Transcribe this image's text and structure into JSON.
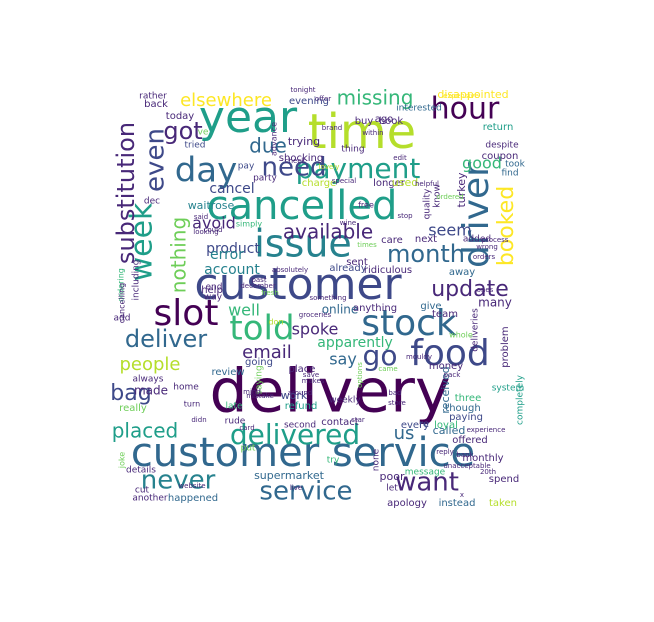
{
  "colors": {
    "c1": "#440154",
    "c2": "#482878",
    "c3": "#3e4989",
    "c4": "#31688e",
    "c5": "#26828e",
    "c6": "#1f9e89",
    "c7": "#35b779",
    "c8": "#6ece58",
    "c9": "#b5de2b",
    "c10": "#fde725"
  },
  "words": [
    {
      "text": "delivery",
      "color": "c1"
    },
    {
      "text": "customer service",
      "color": "c4"
    },
    {
      "text": "customer",
      "color": "c3"
    },
    {
      "text": "time",
      "color": "c9"
    },
    {
      "text": "year",
      "color": "c6"
    },
    {
      "text": "cancelled",
      "color": "c6"
    },
    {
      "text": "issue",
      "color": "c5"
    },
    {
      "text": "stock",
      "color": "c4"
    },
    {
      "text": "food",
      "color": "c3"
    },
    {
      "text": "slot",
      "color": "c1"
    },
    {
      "text": "told",
      "color": "c7"
    },
    {
      "text": "payment",
      "color": "c6"
    },
    {
      "text": "day",
      "color": "c4"
    },
    {
      "text": "driver",
      "color": "c4"
    },
    {
      "text": "delivered",
      "color": "c6"
    },
    {
      "text": "hour",
      "color": "c1"
    },
    {
      "text": "service",
      "color": "c4"
    },
    {
      "text": "want",
      "color": "c2"
    },
    {
      "text": "never",
      "color": "c5"
    },
    {
      "text": "week",
      "color": "c6"
    },
    {
      "text": "substitution",
      "color": "c2"
    },
    {
      "text": "even",
      "color": "c3"
    },
    {
      "text": "need",
      "color": "c3"
    },
    {
      "text": "booked",
      "color": "c10"
    },
    {
      "text": "got",
      "color": "c2"
    },
    {
      "text": "month",
      "color": "c4"
    },
    {
      "text": "go",
      "color": "c3"
    },
    {
      "text": "deliver",
      "color": "c4"
    },
    {
      "text": "missing",
      "color": "c7"
    },
    {
      "text": "nothing",
      "color": "c8"
    },
    {
      "text": "elsewhere",
      "color": "c10"
    },
    {
      "text": "update",
      "color": "c2"
    },
    {
      "text": "available",
      "color": "c2"
    },
    {
      "text": "bag",
      "color": "c3"
    },
    {
      "text": "placed",
      "color": "c6"
    },
    {
      "text": "people",
      "color": "c9"
    },
    {
      "text": "email",
      "color": "c2"
    },
    {
      "text": "due",
      "color": "c4"
    },
    {
      "text": "seem",
      "color": "c3"
    },
    {
      "text": "good",
      "color": "c7"
    },
    {
      "text": "say",
      "color": "c4"
    },
    {
      "text": "spoke",
      "color": "c2"
    },
    {
      "text": "avoid",
      "color": "c2"
    },
    {
      "text": "well",
      "color": "c7"
    },
    {
      "text": "us",
      "color": "c4"
    },
    {
      "text": "account",
      "color": "c5"
    },
    {
      "text": "cancel",
      "color": "c3"
    },
    {
      "text": "online",
      "color": "c4"
    },
    {
      "text": "product",
      "color": "c3"
    },
    {
      "text": "apparently",
      "color": "c7"
    },
    {
      "text": "made",
      "color": "c2"
    },
    {
      "text": "error",
      "color": "c5"
    },
    {
      "text": "disappointed",
      "color": "c10"
    },
    {
      "text": "many",
      "color": "c2"
    },
    {
      "text": "evening",
      "color": "c3"
    },
    {
      "text": "trying",
      "color": "c2"
    },
    {
      "text": "today",
      "color": "c2"
    },
    {
      "text": "waitrose",
      "color": "c5"
    },
    {
      "text": "next",
      "color": "c2"
    },
    {
      "text": "already",
      "color": "c3"
    },
    {
      "text": "supermarket",
      "color": "c4"
    },
    {
      "text": "happened",
      "color": "c4"
    },
    {
      "text": "poor",
      "color": "c2"
    },
    {
      "text": "apology",
      "color": "c2"
    },
    {
      "text": "instead",
      "color": "c4"
    },
    {
      "text": "taken",
      "color": "c9"
    },
    {
      "text": "spend",
      "color": "c2"
    },
    {
      "text": "offered",
      "color": "c2"
    },
    {
      "text": "monthly",
      "color": "c2"
    },
    {
      "text": "called",
      "color": "c4"
    },
    {
      "text": "loyal",
      "color": "c7"
    },
    {
      "text": "work",
      "color": "c3"
    },
    {
      "text": "refund",
      "color": "c6"
    },
    {
      "text": "place",
      "color": "c2"
    },
    {
      "text": "going",
      "color": "c3"
    },
    {
      "text": "contact",
      "color": "c2"
    },
    {
      "text": "every",
      "color": "c3"
    },
    {
      "text": "re",
      "color": "c3"
    },
    {
      "text": "received",
      "color": "c4"
    },
    {
      "text": "three",
      "color": "c7"
    },
    {
      "text": "though",
      "color": "c4"
    },
    {
      "text": "paying",
      "color": "c3"
    },
    {
      "text": "money",
      "color": "c2"
    },
    {
      "text": "problem",
      "color": "c2"
    },
    {
      "text": "team",
      "color": "c2"
    },
    {
      "text": "give",
      "color": "c4"
    },
    {
      "text": "anything",
      "color": "c2"
    },
    {
      "text": "ridiculous",
      "color": "c2"
    },
    {
      "text": "care",
      "color": "c2"
    },
    {
      "text": "sent",
      "color": "c2"
    },
    {
      "text": "away",
      "color": "c4"
    },
    {
      "text": "coupon",
      "color": "c2"
    },
    {
      "text": "return",
      "color": "c6"
    },
    {
      "text": "find",
      "color": "c4"
    },
    {
      "text": "took",
      "color": "c4"
    },
    {
      "text": "despite",
      "color": "c2"
    },
    {
      "text": "ago",
      "color": "c2"
    },
    {
      "text": "buy",
      "color": "c2"
    },
    {
      "text": "book",
      "color": "c2"
    },
    {
      "text": "interested",
      "color": "c4"
    },
    {
      "text": "thing",
      "color": "c2"
    },
    {
      "text": "rather",
      "color": "c2"
    },
    {
      "text": "back",
      "color": "c2"
    },
    {
      "text": "tried",
      "color": "c3"
    },
    {
      "text": "ve",
      "color": "c8"
    },
    {
      "text": "pay",
      "color": "c3"
    },
    {
      "text": "party",
      "color": "c2"
    },
    {
      "text": "dec",
      "color": "c2"
    },
    {
      "text": "including",
      "color": "c2"
    },
    {
      "text": "shocking",
      "color": "c2"
    },
    {
      "text": "charge",
      "color": "c9"
    },
    {
      "text": "longer",
      "color": "c2"
    },
    {
      "text": "used",
      "color": "c9"
    },
    {
      "text": "turkey",
      "color": "c2"
    },
    {
      "text": "quality",
      "color": "c2"
    },
    {
      "text": "know",
      "color": "c2"
    },
    {
      "text": "added",
      "color": "c2"
    },
    {
      "text": "help",
      "color": "c2"
    },
    {
      "text": "way",
      "color": "c2"
    },
    {
      "text": "end",
      "color": "c2"
    },
    {
      "text": "home",
      "color": "c2"
    },
    {
      "text": "review",
      "color": "c4"
    },
    {
      "text": "always",
      "color": "c2"
    },
    {
      "text": "really",
      "color": "c8"
    },
    {
      "text": "late",
      "color": "c7"
    },
    {
      "text": "rude",
      "color": "c2"
    },
    {
      "text": "second",
      "color": "c2"
    },
    {
      "text": "details",
      "color": "c2"
    },
    {
      "text": "put",
      "color": "c8"
    },
    {
      "text": "try",
      "color": "c7"
    },
    {
      "text": "none",
      "color": "c2"
    },
    {
      "text": "let",
      "color": "c2"
    },
    {
      "text": "message",
      "color": "c7"
    },
    {
      "text": "cut",
      "color": "c2"
    },
    {
      "text": "another",
      "color": "c2"
    },
    {
      "text": "saying",
      "color": "c8"
    },
    {
      "text": "weekly",
      "color": "c2"
    },
    {
      "text": "completely",
      "color": "c6"
    },
    {
      "text": "system",
      "color": "c6"
    },
    {
      "text": "deliveries",
      "color": "c2"
    },
    {
      "text": "whole",
      "color": "c8"
    },
    {
      "text": "don",
      "color": "c9"
    },
    {
      "text": "add",
      "color": "c2"
    },
    {
      "text": "tonight",
      "color": "c2"
    },
    {
      "text": "offer",
      "color": "c2"
    },
    {
      "text": "helpful",
      "color": "c2"
    },
    {
      "text": "orders",
      "color": "c2"
    },
    {
      "text": "expensive",
      "color": "c10"
    },
    {
      "text": "ordering",
      "color": "c7"
    },
    {
      "text": "cancelling",
      "color": "c2"
    },
    {
      "text": "joke",
      "color": "c8"
    },
    {
      "text": "experience",
      "color": "c2"
    },
    {
      "text": "unacceptable",
      "color": "c2"
    },
    {
      "text": "simply",
      "color": "c7"
    },
    {
      "text": "fresh",
      "color": "c8"
    },
    {
      "text": "december",
      "color": "c2"
    },
    {
      "text": "wrong",
      "color": "c2"
    },
    {
      "text": "looking",
      "color": "c2"
    },
    {
      "text": "absolutely",
      "color": "c2"
    },
    {
      "text": "bank",
      "color": "c2"
    },
    {
      "text": "reply",
      "color": "c2"
    },
    {
      "text": "star",
      "color": "c2"
    },
    {
      "text": "live",
      "color": "c2"
    },
    {
      "text": "around",
      "color": "c2"
    },
    {
      "text": "makes",
      "color": "c2"
    },
    {
      "text": "save",
      "color": "c2"
    },
    {
      "text": "wine",
      "color": "c2"
    },
    {
      "text": "free",
      "color": "c2"
    },
    {
      "text": "edit",
      "color": "c2"
    },
    {
      "text": "within",
      "color": "c2"
    },
    {
      "text": "brand",
      "color": "c2"
    },
    {
      "text": "advance",
      "color": "c2"
    },
    {
      "text": "options",
      "color": "c8"
    },
    {
      "text": "website",
      "color": "c2"
    },
    {
      "text": "process",
      "color": "c2"
    },
    {
      "text": "lovely",
      "color": "c9"
    },
    {
      "text": "check",
      "color": "c2"
    },
    {
      "text": "groceries",
      "color": "c2"
    },
    {
      "text": "something",
      "color": "c2"
    },
    {
      "text": "said",
      "color": "c2"
    },
    {
      "text": "could",
      "color": "c2"
    },
    {
      "text": "didn",
      "color": "c2"
    },
    {
      "text": "turn",
      "color": "c2"
    },
    {
      "text": "20th",
      "color": "c2"
    },
    {
      "text": "x",
      "color": "c2"
    },
    {
      "text": "ones",
      "color": "c2"
    },
    {
      "text": "store",
      "color": "c2"
    },
    {
      "text": "bad",
      "color": "c2"
    },
    {
      "text": "mouldy",
      "color": "c2"
    },
    {
      "text": "pack",
      "color": "c2"
    },
    {
      "text": "came",
      "color": "c8"
    },
    {
      "text": "stop",
      "color": "c2"
    },
    {
      "text": "ordered",
      "color": "c8"
    },
    {
      "text": "special",
      "color": "c2"
    },
    {
      "text": "times",
      "color": "c8"
    },
    {
      "text": "past",
      "color": "c2"
    },
    {
      "text": "mistake",
      "color": "c2"
    },
    {
      "text": "card",
      "color": "c2"
    },
    {
      "text": "mind",
      "color": "c2"
    },
    {
      "text": "hard",
      "color": "c2"
    },
    {
      "text": "cost",
      "color": "c2"
    },
    {
      "text": "wait",
      "color": "c2"
    }
  ]
}
